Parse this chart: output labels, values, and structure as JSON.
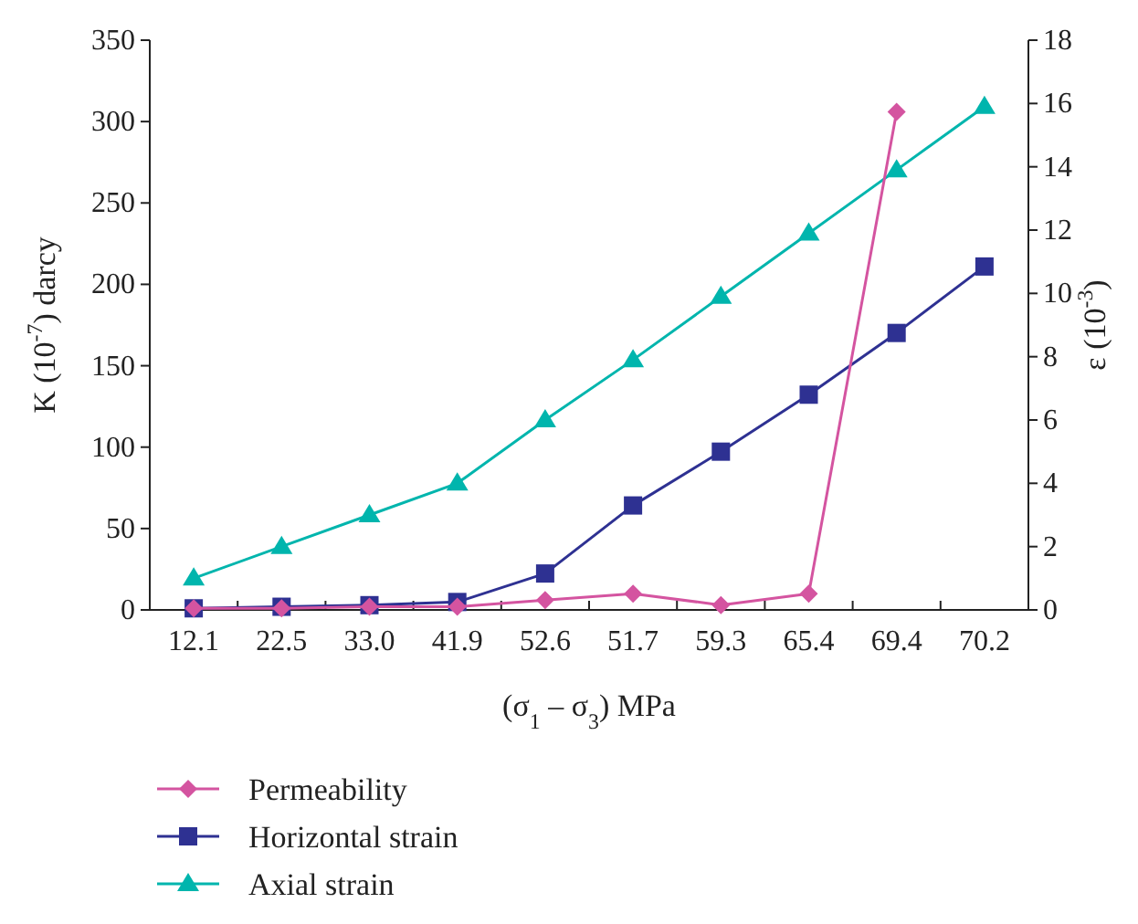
{
  "chart_data": {
    "type": "line",
    "xlabel": "(σ$_{1}$ – σ$_{3}$) MPa",
    "ylabel": "K (10$^{-7}$) darcy",
    "y2label": "ε (10$^{-3}$)",
    "categories": [
      "12.1",
      "22.5",
      "33.0",
      "41.9",
      "52.6",
      "51.7",
      "59.3",
      "65.4",
      "69.4",
      "70.2"
    ],
    "ylim": [
      0,
      350
    ],
    "yticks": [
      0,
      50,
      100,
      150,
      200,
      250,
      300,
      350
    ],
    "y2lim": [
      0,
      18
    ],
    "y2ticks": [
      0,
      2,
      4,
      6,
      8,
      10,
      12,
      14,
      16,
      18
    ],
    "legend": "bottom left",
    "grid": false,
    "series": [
      {
        "name": "Permeability",
        "color": "#d454a0",
        "marker": "diamond",
        "values": [
          1,
          1,
          2,
          2,
          6,
          10,
          3,
          10,
          306,
          null
        ]
      },
      {
        "name": "Horizontal strain",
        "color": "#2e3192",
        "marker": "square",
        "axis": "y2",
        "values": [
          0.05,
          0.1,
          0.15,
          0.25,
          1.15,
          3.3,
          5,
          6.8,
          8.75,
          10.85
        ]
      },
      {
        "name": "Axial strain",
        "color": "#00b5ad",
        "marker": "triangle",
        "axis": "y2",
        "values": [
          1,
          2,
          3,
          4,
          6,
          7.9,
          9.9,
          11.9,
          13.9,
          15.9
        ]
      }
    ]
  }
}
